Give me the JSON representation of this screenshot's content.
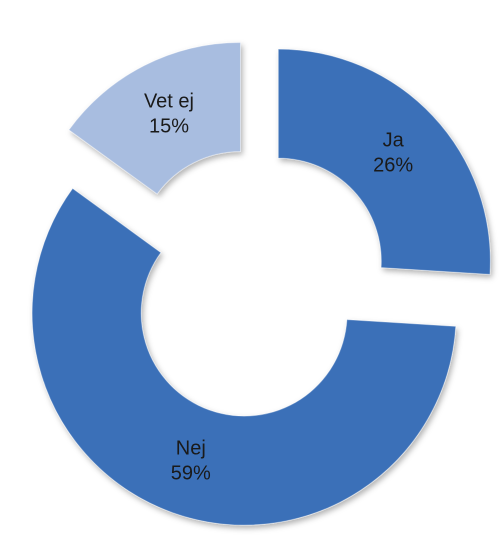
{
  "chart_data": {
    "type": "donut",
    "categories": [
      "Ja",
      "Nej",
      "Vet ej"
    ],
    "values": [
      26,
      59,
      15
    ],
    "value_labels": [
      "26%",
      "59%",
      "15%"
    ],
    "colors": [
      "#3b70b8",
      "#3b70b8",
      "#a8bde0"
    ],
    "exploded": true
  }
}
